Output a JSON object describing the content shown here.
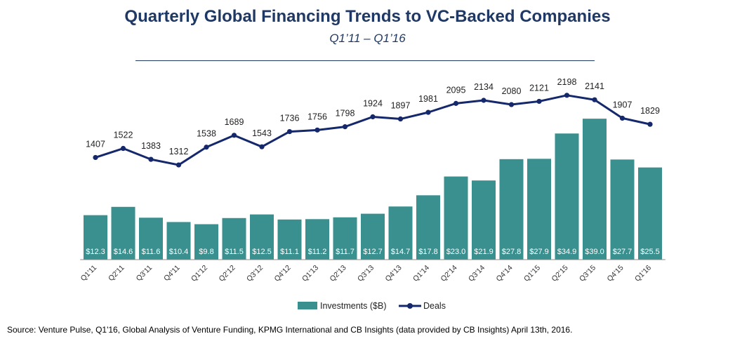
{
  "title": "Quarterly Global Financing Trends to VC-Backed Companies",
  "subtitle": "Q1’11 – Q1’16",
  "source": "Source: Venture Pulse, Q1'16, Global Analysis of Venture Funding, KPMG International and CB Insights (data provided by CB Insights) April 13th, 2016.",
  "colors": {
    "bars": "#3A8F8F",
    "line": "#14286B",
    "title": "#1F3864"
  },
  "chart_data": {
    "type": "bar",
    "categories": [
      "Q1'11",
      "Q2'11",
      "Q3'11",
      "Q4'11",
      "Q1'12",
      "Q2'12",
      "Q3'12",
      "Q4'12",
      "Q1'13",
      "Q2'13",
      "Q3'13",
      "Q4'13",
      "Q1'14",
      "Q2'14",
      "Q3'14",
      "Q4'14",
      "Q1'15",
      "Q2'15",
      "Q3'15",
      "Q4'15",
      "Q1'16"
    ],
    "series": [
      {
        "name": "Investments ($B)",
        "type": "bar",
        "values": [
          12.3,
          14.6,
          11.6,
          10.4,
          9.8,
          11.5,
          12.5,
          11.1,
          11.2,
          11.7,
          12.7,
          14.7,
          17.8,
          23.0,
          21.9,
          27.8,
          27.9,
          34.9,
          39.0,
          27.7,
          25.5
        ],
        "labels": [
          "$12.3",
          "$14.6",
          "$11.6",
          "$10.4",
          "$9.8",
          "$11.5",
          "$12.5",
          "$11.1",
          "$11.2",
          "$11.7",
          "$12.7",
          "$14.7",
          "$17.8",
          "$23.0",
          "$21.9",
          "$27.8",
          "$27.9",
          "$34.9",
          "$39.0",
          "$27.7",
          "$25.5"
        ]
      },
      {
        "name": "Deals",
        "type": "line",
        "values": [
          1407,
          1522,
          1383,
          1312,
          1538,
          1689,
          1543,
          1736,
          1756,
          1798,
          1924,
          1897,
          1981,
          2095,
          2134,
          2080,
          2121,
          2198,
          2141,
          1907,
          1829
        ]
      }
    ],
    "legend_position": "bottom",
    "grid": false
  }
}
